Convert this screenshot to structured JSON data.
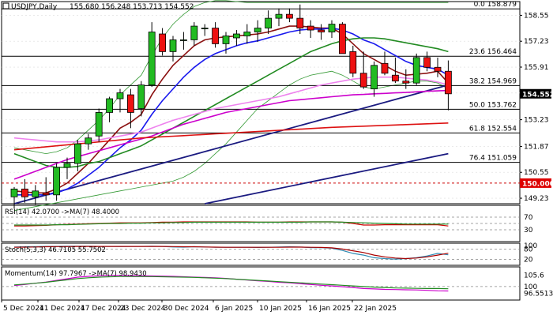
{
  "chart_data": [
    {
      "type": "candlestick",
      "title": "USDJPY,Daily",
      "ohlc_header": "155.680 156.248 153.713 154.552",
      "x_tick_labels": [
        "5 Dec 2024",
        "11 Dec 2024",
        "17 Dec 2024",
        "23 Dec 2024",
        "30 Dec 2024",
        "6 Jan 2025",
        "10 Jan 2025",
        "16 Jan 2025",
        "22 Jan 2025"
      ],
      "y_tick_labels": [
        158.55,
        157.23,
        155.91,
        154.59,
        153.23,
        151.87,
        150.55,
        149.23
      ],
      "ylim": [
        148.95,
        159.25
      ],
      "candles": [
        {
          "o": 149.3,
          "h": 149.8,
          "l": 148.7,
          "c": 149.7
        },
        {
          "o": 149.7,
          "h": 150.2,
          "l": 149.0,
          "c": 149.3
        },
        {
          "o": 149.3,
          "h": 149.9,
          "l": 148.9,
          "c": 149.6
        },
        {
          "o": 149.5,
          "h": 150.3,
          "l": 149.1,
          "c": 149.4
        },
        {
          "o": 149.4,
          "h": 151.0,
          "l": 149.1,
          "c": 150.8
        },
        {
          "o": 150.8,
          "h": 151.3,
          "l": 150.2,
          "c": 151.0
        },
        {
          "o": 151.0,
          "h": 152.2,
          "l": 150.6,
          "c": 152.0
        },
        {
          "o": 152.0,
          "h": 152.5,
          "l": 151.7,
          "c": 152.3
        },
        {
          "o": 152.4,
          "h": 153.8,
          "l": 152.1,
          "c": 153.6
        },
        {
          "o": 153.6,
          "h": 154.4,
          "l": 153.1,
          "c": 154.3
        },
        {
          "o": 154.3,
          "h": 154.8,
          "l": 153.6,
          "c": 154.6
        },
        {
          "o": 154.5,
          "h": 154.8,
          "l": 152.8,
          "c": 153.6
        },
        {
          "o": 153.8,
          "h": 155.2,
          "l": 153.4,
          "c": 155.0
        },
        {
          "o": 155.0,
          "h": 158.2,
          "l": 154.9,
          "c": 157.7
        },
        {
          "o": 157.6,
          "h": 157.9,
          "l": 156.5,
          "c": 156.7
        },
        {
          "o": 156.7,
          "h": 157.5,
          "l": 156.2,
          "c": 157.3
        },
        {
          "o": 157.3,
          "h": 157.7,
          "l": 156.8,
          "c": 157.3
        },
        {
          "o": 157.3,
          "h": 158.2,
          "l": 157.0,
          "c": 158.0
        },
        {
          "o": 157.9,
          "h": 158.1,
          "l": 157.5,
          "c": 157.9
        },
        {
          "o": 157.9,
          "h": 158.2,
          "l": 156.9,
          "c": 157.1
        },
        {
          "o": 157.1,
          "h": 157.7,
          "l": 156.6,
          "c": 157.5
        },
        {
          "o": 157.4,
          "h": 157.8,
          "l": 157.0,
          "c": 157.6
        },
        {
          "o": 157.5,
          "h": 158.1,
          "l": 157.1,
          "c": 157.7
        },
        {
          "o": 157.7,
          "h": 158.3,
          "l": 157.2,
          "c": 157.9
        },
        {
          "o": 157.9,
          "h": 158.8,
          "l": 157.6,
          "c": 158.4
        },
        {
          "o": 158.4,
          "h": 158.9,
          "l": 158.0,
          "c": 158.6
        },
        {
          "o": 158.6,
          "h": 158.9,
          "l": 158.2,
          "c": 158.4
        },
        {
          "o": 158.4,
          "h": 159.1,
          "l": 157.6,
          "c": 157.9
        },
        {
          "o": 158.0,
          "h": 158.3,
          "l": 157.4,
          "c": 157.8
        },
        {
          "o": 157.8,
          "h": 158.1,
          "l": 157.3,
          "c": 157.7
        },
        {
          "o": 157.7,
          "h": 158.3,
          "l": 157.4,
          "c": 158.1
        },
        {
          "o": 158.1,
          "h": 158.2,
          "l": 156.7,
          "c": 156.6
        },
        {
          "o": 156.7,
          "h": 157.0,
          "l": 155.4,
          "c": 155.6
        },
        {
          "o": 155.6,
          "h": 156.7,
          "l": 154.8,
          "c": 154.9
        },
        {
          "o": 154.8,
          "h": 156.2,
          "l": 154.4,
          "c": 156.0
        },
        {
          "o": 156.1,
          "h": 156.7,
          "l": 155.5,
          "c": 155.6
        },
        {
          "o": 155.5,
          "h": 156.4,
          "l": 155.1,
          "c": 155.2
        },
        {
          "o": 155.2,
          "h": 155.8,
          "l": 154.8,
          "c": 155.1
        },
        {
          "o": 155.1,
          "h": 156.6,
          "l": 155.0,
          "c": 156.4
        },
        {
          "o": 156.4,
          "h": 156.7,
          "l": 155.7,
          "c": 155.9
        },
        {
          "o": 155.9,
          "h": 156.4,
          "l": 155.4,
          "c": 155.7
        },
        {
          "o": 155.7,
          "h": 156.25,
          "l": 153.71,
          "c": 154.55
        }
      ],
      "moving_averages": [
        {
          "color": "#8b1010",
          "points": [
            149.6,
            149.55,
            149.5,
            149.5,
            149.7,
            150.0,
            150.5,
            151.0,
            151.6,
            152.2,
            152.8,
            153.1,
            153.5,
            154.5,
            155.3,
            156.0,
            156.5,
            157.0,
            157.3,
            157.4,
            157.45,
            157.5,
            157.55,
            157.6,
            157.7,
            157.85,
            158.0,
            158.0,
            157.95,
            157.9,
            157.9,
            157.6,
            157.1,
            156.6,
            156.3,
            156.0,
            155.7,
            155.5,
            155.55,
            155.6,
            155.7,
            155.1
          ]
        },
        {
          "color": "#1a1aee",
          "points": [
            149.4,
            149.4,
            149.4,
            149.4,
            149.5,
            149.7,
            150.0,
            150.4,
            150.8,
            151.3,
            151.8,
            152.2,
            152.7,
            153.5,
            154.2,
            154.8,
            155.4,
            155.9,
            156.3,
            156.6,
            156.8,
            157.0,
            157.15,
            157.25,
            157.4,
            157.55,
            157.7,
            157.8,
            157.85,
            157.85,
            157.9,
            157.8,
            157.6,
            157.3,
            157.1,
            156.8,
            156.5,
            156.2,
            156.0,
            155.9,
            155.8,
            155.5
          ]
        },
        {
          "color": "#228b22",
          "points": [
            151.5,
            151.3,
            151.1,
            150.9,
            150.8,
            150.8,
            150.85,
            151.0,
            151.1,
            151.3,
            151.5,
            151.7,
            151.9,
            152.2,
            152.5,
            152.8,
            153.1,
            153.4,
            153.7,
            154.0,
            154.3,
            154.6,
            154.9,
            155.2,
            155.5,
            155.8,
            156.1,
            156.4,
            156.7,
            156.9,
            157.1,
            157.25,
            157.35,
            157.4,
            157.4,
            157.35,
            157.25,
            157.15,
            157.05,
            156.95,
            156.85,
            156.7
          ]
        },
        {
          "color": "#ee82ee",
          "points": [
            152.3,
            152.25,
            152.2,
            152.15,
            152.1,
            152.1,
            152.1,
            152.15,
            152.2,
            152.3,
            152.4,
            152.5,
            152.6,
            152.8,
            153.0,
            153.2,
            153.35,
            153.5,
            153.65,
            153.8,
            153.9,
            154.0,
            154.1,
            154.2,
            154.3,
            154.4,
            154.55,
            154.7,
            154.85,
            155.0,
            155.1,
            155.2,
            155.3,
            155.35,
            155.4,
            155.4,
            155.4,
            155.35,
            155.3,
            155.25,
            155.15,
            155.0
          ]
        },
        {
          "color": "#cc00cc",
          "points": [
            150.2,
            150.4,
            150.6,
            150.8,
            151.0,
            151.2,
            151.35,
            151.5,
            151.65,
            151.8,
            151.95,
            152.1,
            152.25,
            152.4,
            152.6,
            152.8,
            153.0,
            153.15,
            153.3,
            153.45,
            153.6,
            153.7,
            153.8,
            153.9,
            154.0,
            154.1,
            154.2,
            154.25,
            154.3,
            154.35,
            154.4,
            154.45,
            154.5,
            154.52,
            154.55,
            154.57,
            154.6,
            154.62,
            154.65,
            154.68,
            154.7,
            154.72
          ]
        },
        {
          "color": "#dd1111",
          "points": [
            151.7,
            151.75,
            151.8,
            151.85,
            151.9,
            151.95,
            152.0,
            152.05,
            152.1,
            152.15,
            152.2,
            152.25,
            152.3,
            152.33,
            152.36,
            152.39,
            152.42,
            152.45,
            152.48,
            152.51,
            152.54,
            152.57,
            152.6,
            152.63,
            152.66,
            152.69,
            152.72,
            152.75,
            152.78,
            152.81,
            152.84,
            152.86,
            152.88,
            152.9,
            152.92,
            152.94,
            152.96,
            152.98,
            153.0,
            153.02,
            153.04,
            153.06
          ]
        }
      ],
      "bollinger_bands": {
        "color": "#339933",
        "upper": [
          151.8,
          151.7,
          151.6,
          151.5,
          151.6,
          151.8,
          152.2,
          152.7,
          153.2,
          153.8,
          154.5,
          155.0,
          155.5,
          156.5,
          157.4,
          158.1,
          158.6,
          159.0,
          159.2,
          159.3,
          159.3,
          159.25,
          159.2,
          159.2,
          159.2,
          159.2,
          159.2,
          159.2,
          159.2,
          159.2,
          159.2,
          159.2,
          159.2,
          159.2,
          159.2,
          159.2,
          159.2,
          159.2,
          159.2,
          159.2,
          159.2,
          159.2
        ],
        "lower": [
          148.6,
          148.7,
          148.8,
          148.9,
          149.0,
          149.1,
          149.2,
          149.3,
          149.4,
          149.5,
          149.6,
          149.7,
          149.8,
          149.9,
          150.0,
          150.1,
          150.3,
          150.6,
          151.0,
          151.5,
          152.0,
          152.6,
          153.2,
          153.8,
          154.2,
          154.6,
          155.0,
          155.3,
          155.5,
          155.6,
          155.7,
          155.5,
          155.2,
          154.9,
          154.8,
          154.9,
          155.0,
          155.1,
          155.2,
          155.2,
          155.1,
          154.8
        ]
      },
      "trendlines": [
        {
          "color": "#1a1a80",
          "from": {
            "bar": 0,
            "price": 148.95
          },
          "to": {
            "bar": 41,
            "price": 155.0
          }
        },
        {
          "color": "#1a1a80",
          "from": {
            "bar": 18,
            "price": 148.95
          },
          "to": {
            "bar": 41,
            "price": 151.5
          }
        }
      ],
      "horizontal_levels": [
        {
          "label": "0.0 158.879",
          "price": 158.879,
          "color": "#000000",
          "style": "solid"
        },
        {
          "label": "23.6 156.464",
          "price": 156.464,
          "color": "#000000",
          "style": "solid"
        },
        {
          "label": "38.2 154.969",
          "price": 154.969,
          "color": "#000000",
          "style": "solid"
        },
        {
          "label": "50.0 153.762",
          "price": 153.762,
          "color": "#000000",
          "style": "solid"
        },
        {
          "label": "61.8 152.554",
          "price": 152.554,
          "color": "#000000",
          "style": "solid"
        },
        {
          "label": "76.4 151.059",
          "price": 151.059,
          "color": "#000000",
          "style": "solid"
        },
        {
          "label": "",
          "price": 150.0,
          "color": "#cc0000",
          "style": "dashed"
        }
      ],
      "price_tags": [
        {
          "label": "154.552",
          "price": 154.552,
          "bg": "#000000",
          "fg": "#ffffff"
        },
        {
          "label": "150.000",
          "price": 150.0,
          "bg": "#dd0000",
          "fg": "#ffffff"
        }
      ]
    },
    {
      "type": "line",
      "title": "RSI(14) 42.0700 ->MA(7) 48.4000",
      "y_tick_labels": [
        "70",
        "30"
      ],
      "levels": [
        70,
        50,
        30
      ],
      "ylim": [
        0,
        100
      ],
      "series": [
        {
          "color": "#cc0000",
          "values": [
            42,
            42,
            43,
            44,
            46,
            47,
            48,
            49,
            50,
            51,
            52,
            52,
            52,
            53,
            54,
            54,
            55,
            55,
            55,
            55,
            55,
            55,
            55,
            54,
            54,
            54,
            55,
            55,
            55,
            55,
            55,
            54,
            50,
            45,
            45,
            46,
            46,
            46,
            46,
            46,
            46,
            42
          ]
        },
        {
          "color": "#228b22",
          "values": [
            45,
            45,
            45,
            45,
            46,
            46,
            47,
            48,
            49,
            50,
            50,
            51,
            51,
            52,
            52,
            53,
            53,
            54,
            54,
            54,
            54,
            54,
            54,
            54,
            54,
            54,
            54,
            54,
            55,
            55,
            55,
            54,
            53,
            52,
            51,
            50,
            49,
            48,
            48,
            48,
            48,
            48
          ]
        }
      ]
    },
    {
      "type": "line",
      "title": "Stoch(5,3,3) 46.7105 55.7502",
      "y_tick_labels": [
        "100",
        "80",
        "20"
      ],
      "levels": [
        80,
        20
      ],
      "ylim": [
        0,
        100
      ],
      "series": [
        {
          "color": "#2e8bb3",
          "values": [
            92,
            93,
            94,
            95,
            95,
            96,
            96,
            96,
            95,
            95,
            94,
            95,
            95,
            96,
            95,
            92,
            91,
            93,
            92,
            90,
            90,
            90,
            90,
            89,
            90,
            92,
            93,
            92,
            88,
            88,
            85,
            72,
            55,
            45,
            30,
            25,
            22,
            25,
            30,
            40,
            55,
            47
          ]
        },
        {
          "color": "#aa0000",
          "values": [
            90,
            91,
            92,
            93,
            94,
            94,
            95,
            95,
            95,
            95,
            95,
            95,
            95,
            95,
            95,
            94,
            93,
            93,
            92,
            91,
            90,
            90,
            90,
            90,
            90,
            90,
            91,
            91,
            90,
            89,
            87,
            80,
            70,
            60,
            45,
            35,
            28,
            25,
            28,
            35,
            45,
            56
          ]
        }
      ]
    },
    {
      "type": "line",
      "title": "Momentum(14) 97.7967 ->MA(7) 98.9430",
      "y_tick_labels": [
        "105.6",
        "100",
        "96.5513"
      ],
      "levels": [
        100
      ],
      "ylim": [
        94.5,
        108.5
      ],
      "series": [
        {
          "color": "#cc00cc",
          "values": [
            100.5,
            101.0,
            101.6,
            102.2,
            103.0,
            103.8,
            104.6,
            105.0,
            105.3,
            105.5,
            105.5,
            105.4,
            105.3,
            105.2,
            105.1,
            105.0,
            104.8,
            104.6,
            104.5,
            104.3,
            104.0,
            103.6,
            103.2,
            102.8,
            102.5,
            102.1,
            101.8,
            101.4,
            101.0,
            100.6,
            100.3,
            99.9,
            99.5,
            99.0,
            98.8,
            98.6,
            98.5,
            98.4,
            98.3,
            98.1,
            97.9,
            97.8
          ]
        },
        {
          "color": "#228b22",
          "values": [
            100.8,
            101.2,
            101.6,
            102.1,
            102.7,
            103.3,
            103.9,
            104.3,
            104.6,
            104.8,
            104.9,
            104.9,
            104.9,
            104.9,
            104.8,
            104.7,
            104.6,
            104.5,
            104.3,
            104.1,
            103.9,
            103.6,
            103.3,
            103.0,
            102.7,
            102.4,
            102.1,
            101.8,
            101.5,
            101.2,
            100.9,
            100.6,
            100.3,
            100.0,
            99.7,
            99.5,
            99.3,
            99.2,
            99.1,
            99.0,
            99.0,
            98.9
          ]
        }
      ]
    }
  ]
}
